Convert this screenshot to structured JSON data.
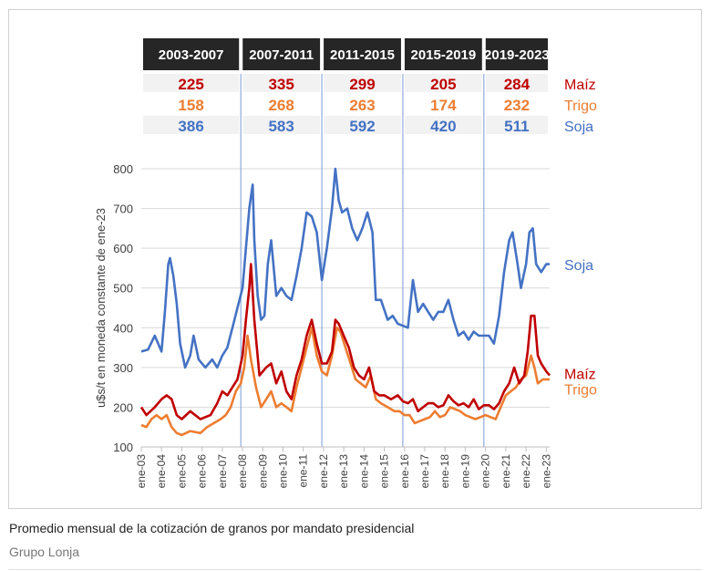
{
  "caption": "Promedio mensual de la cotización de granos por mandato presidencial",
  "credit": "Grupo Lonja",
  "colors": {
    "maiz": "#c00000",
    "trigo": "#ed7d31",
    "soja": "#4472c4",
    "header_bg": "#262626",
    "grid": "#d9d9d9",
    "divider": "#8faadc"
  },
  "chart_data": {
    "type": "line",
    "title": "",
    "xlabel": "",
    "ylabel": "u$s/t en moneda constante de ene-23",
    "ylim": [
      100,
      800
    ],
    "yticks": [
      100,
      200,
      300,
      400,
      500,
      600,
      700,
      800
    ],
    "xticks": [
      "ene-03",
      "ene-04",
      "ene-05",
      "ene-06",
      "ene-07",
      "ene-08",
      "ene-09",
      "ene-10",
      "ene-11",
      "ene-12",
      "ene-13",
      "ene-14",
      "ene-15",
      "ene-16",
      "ene-17",
      "ene-18",
      "ene-19",
      "ene-20",
      "ene-21",
      "ene-22",
      "ene-23"
    ],
    "x_start": "2003-01",
    "x_end": "2023-03",
    "grid": "horizontal",
    "periods": [
      {
        "label": "2003-2007",
        "start": "2003-01",
        "end": "2007-12",
        "maiz": "225",
        "trigo": "158",
        "soja": "386"
      },
      {
        "label": "2007-2011",
        "start": "2007-12",
        "end": "2011-12",
        "maiz": "335",
        "trigo": "268",
        "soja": "583"
      },
      {
        "label": "2011-2015",
        "start": "2011-12",
        "end": "2015-12",
        "maiz": "299",
        "trigo": "263",
        "soja": "592"
      },
      {
        "label": "2015-2019",
        "start": "2015-12",
        "end": "2019-12",
        "maiz": "205",
        "trigo": "174",
        "soja": "420"
      },
      {
        "label": "2019-2023",
        "start": "2019-12",
        "end": "2023-03",
        "maiz": "284",
        "trigo": "232",
        "soja": "511"
      }
    ],
    "row_labels": {
      "maiz": "Maíz",
      "trigo": "Trigo",
      "soja": "Soja"
    },
    "series": [
      {
        "name": "Soja",
        "key": "soja",
        "points": [
          [
            "2003-01",
            340
          ],
          [
            "2003-05",
            345
          ],
          [
            "2003-09",
            380
          ],
          [
            "2004-01",
            340
          ],
          [
            "2004-03",
            440
          ],
          [
            "2004-05",
            560
          ],
          [
            "2004-06",
            575
          ],
          [
            "2004-08",
            530
          ],
          [
            "2004-10",
            460
          ],
          [
            "2004-12",
            360
          ],
          [
            "2005-03",
            300
          ],
          [
            "2005-06",
            330
          ],
          [
            "2005-08",
            380
          ],
          [
            "2005-11",
            320
          ],
          [
            "2006-03",
            300
          ],
          [
            "2006-07",
            320
          ],
          [
            "2006-10",
            300
          ],
          [
            "2007-01",
            330
          ],
          [
            "2007-04",
            350
          ],
          [
            "2007-07",
            400
          ],
          [
            "2007-10",
            450
          ],
          [
            "2008-01",
            500
          ],
          [
            "2008-03",
            600
          ],
          [
            "2008-05",
            700
          ],
          [
            "2008-06",
            730
          ],
          [
            "2008-07",
            760
          ],
          [
            "2008-08",
            620
          ],
          [
            "2008-10",
            480
          ],
          [
            "2008-12",
            420
          ],
          [
            "2009-02",
            430
          ],
          [
            "2009-04",
            560
          ],
          [
            "2009-06",
            620
          ],
          [
            "2009-09",
            480
          ],
          [
            "2009-12",
            500
          ],
          [
            "2010-03",
            480
          ],
          [
            "2010-06",
            470
          ],
          [
            "2010-09",
            530
          ],
          [
            "2010-12",
            600
          ],
          [
            "2011-03",
            690
          ],
          [
            "2011-06",
            680
          ],
          [
            "2011-09",
            640
          ],
          [
            "2011-12",
            520
          ],
          [
            "2012-03",
            600
          ],
          [
            "2012-06",
            700
          ],
          [
            "2012-08",
            800
          ],
          [
            "2012-10",
            720
          ],
          [
            "2012-12",
            690
          ],
          [
            "2013-03",
            700
          ],
          [
            "2013-06",
            650
          ],
          [
            "2013-09",
            620
          ],
          [
            "2013-12",
            650
          ],
          [
            "2014-03",
            690
          ],
          [
            "2014-06",
            640
          ],
          [
            "2014-08",
            470
          ],
          [
            "2014-11",
            470
          ],
          [
            "2015-03",
            420
          ],
          [
            "2015-06",
            430
          ],
          [
            "2015-09",
            410
          ],
          [
            "2015-12",
            405
          ],
          [
            "2016-03",
            400
          ],
          [
            "2016-06",
            520
          ],
          [
            "2016-09",
            440
          ],
          [
            "2016-12",
            460
          ],
          [
            "2017-03",
            440
          ],
          [
            "2017-06",
            420
          ],
          [
            "2017-09",
            440
          ],
          [
            "2017-12",
            440
          ],
          [
            "2018-03",
            470
          ],
          [
            "2018-06",
            420
          ],
          [
            "2018-09",
            380
          ],
          [
            "2018-12",
            390
          ],
          [
            "2019-03",
            370
          ],
          [
            "2019-06",
            390
          ],
          [
            "2019-09",
            380
          ],
          [
            "2019-12",
            380
          ],
          [
            "2020-03",
            380
          ],
          [
            "2020-06",
            360
          ],
          [
            "2020-09",
            430
          ],
          [
            "2020-12",
            540
          ],
          [
            "2021-03",
            620
          ],
          [
            "2021-05",
            640
          ],
          [
            "2021-08",
            560
          ],
          [
            "2021-10",
            500
          ],
          [
            "2022-01",
            560
          ],
          [
            "2022-03",
            640
          ],
          [
            "2022-05",
            650
          ],
          [
            "2022-07",
            560
          ],
          [
            "2022-10",
            540
          ],
          [
            "2023-01",
            560
          ],
          [
            "2023-03",
            560
          ]
        ]
      },
      {
        "name": "Maíz",
        "key": "maiz",
        "points": [
          [
            "2003-01",
            200
          ],
          [
            "2003-04",
            180
          ],
          [
            "2003-09",
            200
          ],
          [
            "2004-01",
            220
          ],
          [
            "2004-04",
            230
          ],
          [
            "2004-07",
            220
          ],
          [
            "2004-10",
            180
          ],
          [
            "2005-01",
            170
          ],
          [
            "2005-06",
            190
          ],
          [
            "2005-12",
            170
          ],
          [
            "2006-06",
            180
          ],
          [
            "2006-10",
            210
          ],
          [
            "2007-01",
            240
          ],
          [
            "2007-04",
            230
          ],
          [
            "2007-07",
            250
          ],
          [
            "2007-10",
            270
          ],
          [
            "2008-01",
            330
          ],
          [
            "2008-03",
            420
          ],
          [
            "2008-05",
            500
          ],
          [
            "2008-06",
            560
          ],
          [
            "2008-08",
            420
          ],
          [
            "2008-11",
            280
          ],
          [
            "2009-03",
            300
          ],
          [
            "2009-06",
            310
          ],
          [
            "2009-09",
            260
          ],
          [
            "2009-12",
            290
          ],
          [
            "2010-03",
            240
          ],
          [
            "2010-06",
            220
          ],
          [
            "2010-09",
            280
          ],
          [
            "2010-12",
            320
          ],
          [
            "2011-03",
            380
          ],
          [
            "2011-06",
            420
          ],
          [
            "2011-09",
            360
          ],
          [
            "2011-12",
            310
          ],
          [
            "2012-03",
            310
          ],
          [
            "2012-06",
            340
          ],
          [
            "2012-08",
            420
          ],
          [
            "2012-10",
            410
          ],
          [
            "2013-01",
            380
          ],
          [
            "2013-04",
            350
          ],
          [
            "2013-07",
            300
          ],
          [
            "2013-10",
            280
          ],
          [
            "2014-01",
            270
          ],
          [
            "2014-04",
            300
          ],
          [
            "2014-07",
            240
          ],
          [
            "2014-10",
            230
          ],
          [
            "2015-01",
            230
          ],
          [
            "2015-05",
            220
          ],
          [
            "2015-09",
            230
          ],
          [
            "2015-12",
            215
          ],
          [
            "2016-03",
            210
          ],
          [
            "2016-06",
            220
          ],
          [
            "2016-09",
            190
          ],
          [
            "2016-12",
            200
          ],
          [
            "2017-03",
            210
          ],
          [
            "2017-06",
            210
          ],
          [
            "2017-09",
            200
          ],
          [
            "2017-12",
            205
          ],
          [
            "2018-03",
            230
          ],
          [
            "2018-06",
            215
          ],
          [
            "2018-09",
            205
          ],
          [
            "2018-12",
            210
          ],
          [
            "2019-03",
            200
          ],
          [
            "2019-06",
            220
          ],
          [
            "2019-09",
            195
          ],
          [
            "2019-12",
            205
          ],
          [
            "2020-03",
            205
          ],
          [
            "2020-06",
            195
          ],
          [
            "2020-09",
            210
          ],
          [
            "2020-12",
            240
          ],
          [
            "2021-03",
            260
          ],
          [
            "2021-06",
            300
          ],
          [
            "2021-09",
            260
          ],
          [
            "2021-12",
            280
          ],
          [
            "2022-02",
            340
          ],
          [
            "2022-04",
            430
          ],
          [
            "2022-06",
            430
          ],
          [
            "2022-08",
            330
          ],
          [
            "2022-10",
            310
          ],
          [
            "2023-01",
            290
          ],
          [
            "2023-03",
            280
          ]
        ]
      },
      {
        "name": "Trigo",
        "key": "trigo",
        "points": [
          [
            "2003-01",
            155
          ],
          [
            "2003-04",
            150
          ],
          [
            "2003-07",
            170
          ],
          [
            "2003-10",
            180
          ],
          [
            "2004-01",
            170
          ],
          [
            "2004-04",
            180
          ],
          [
            "2004-07",
            150
          ],
          [
            "2004-10",
            135
          ],
          [
            "2005-01",
            130
          ],
          [
            "2005-06",
            140
          ],
          [
            "2005-12",
            135
          ],
          [
            "2006-04",
            150
          ],
          [
            "2006-08",
            160
          ],
          [
            "2006-12",
            170
          ],
          [
            "2007-03",
            180
          ],
          [
            "2007-06",
            200
          ],
          [
            "2007-09",
            240
          ],
          [
            "2007-12",
            260
          ],
          [
            "2008-02",
            300
          ],
          [
            "2008-04",
            380
          ],
          [
            "2008-06",
            320
          ],
          [
            "2008-09",
            250
          ],
          [
            "2008-12",
            200
          ],
          [
            "2009-03",
            220
          ],
          [
            "2009-06",
            240
          ],
          [
            "2009-09",
            200
          ],
          [
            "2009-12",
            210
          ],
          [
            "2010-03",
            200
          ],
          [
            "2010-06",
            190
          ],
          [
            "2010-09",
            250
          ],
          [
            "2010-12",
            300
          ],
          [
            "2011-03",
            350
          ],
          [
            "2011-06",
            400
          ],
          [
            "2011-09",
            330
          ],
          [
            "2011-12",
            290
          ],
          [
            "2012-03",
            280
          ],
          [
            "2012-06",
            330
          ],
          [
            "2012-09",
            400
          ],
          [
            "2012-11",
            390
          ],
          [
            "2013-02",
            350
          ],
          [
            "2013-05",
            310
          ],
          [
            "2013-08",
            270
          ],
          [
            "2013-11",
            260
          ],
          [
            "2014-02",
            250
          ],
          [
            "2014-05",
            280
          ],
          [
            "2014-08",
            220
          ],
          [
            "2014-11",
            210
          ],
          [
            "2015-03",
            200
          ],
          [
            "2015-07",
            190
          ],
          [
            "2015-10",
            190
          ],
          [
            "2016-01",
            180
          ],
          [
            "2016-04",
            180
          ],
          [
            "2016-07",
            160
          ],
          [
            "2016-10",
            165
          ],
          [
            "2017-01",
            170
          ],
          [
            "2017-04",
            175
          ],
          [
            "2017-07",
            190
          ],
          [
            "2017-10",
            175
          ],
          [
            "2018-01",
            180
          ],
          [
            "2018-04",
            200
          ],
          [
            "2018-07",
            195
          ],
          [
            "2018-10",
            190
          ],
          [
            "2019-01",
            180
          ],
          [
            "2019-04",
            175
          ],
          [
            "2019-07",
            170
          ],
          [
            "2019-10",
            175
          ],
          [
            "2020-01",
            180
          ],
          [
            "2020-04",
            175
          ],
          [
            "2020-07",
            170
          ],
          [
            "2020-10",
            200
          ],
          [
            "2021-01",
            230
          ],
          [
            "2021-04",
            240
          ],
          [
            "2021-07",
            250
          ],
          [
            "2021-10",
            270
          ],
          [
            "2022-01",
            280
          ],
          [
            "2022-04",
            330
          ],
          [
            "2022-06",
            300
          ],
          [
            "2022-08",
            260
          ],
          [
            "2022-11",
            270
          ],
          [
            "2023-03",
            270
          ]
        ]
      }
    ],
    "series_labels": [
      {
        "key": "soja",
        "text": "Soja",
        "y": 557
      },
      {
        "key": "maiz",
        "text": "Maíz",
        "y": 283
      },
      {
        "key": "trigo",
        "text": "Trigo",
        "y": 244
      }
    ]
  }
}
